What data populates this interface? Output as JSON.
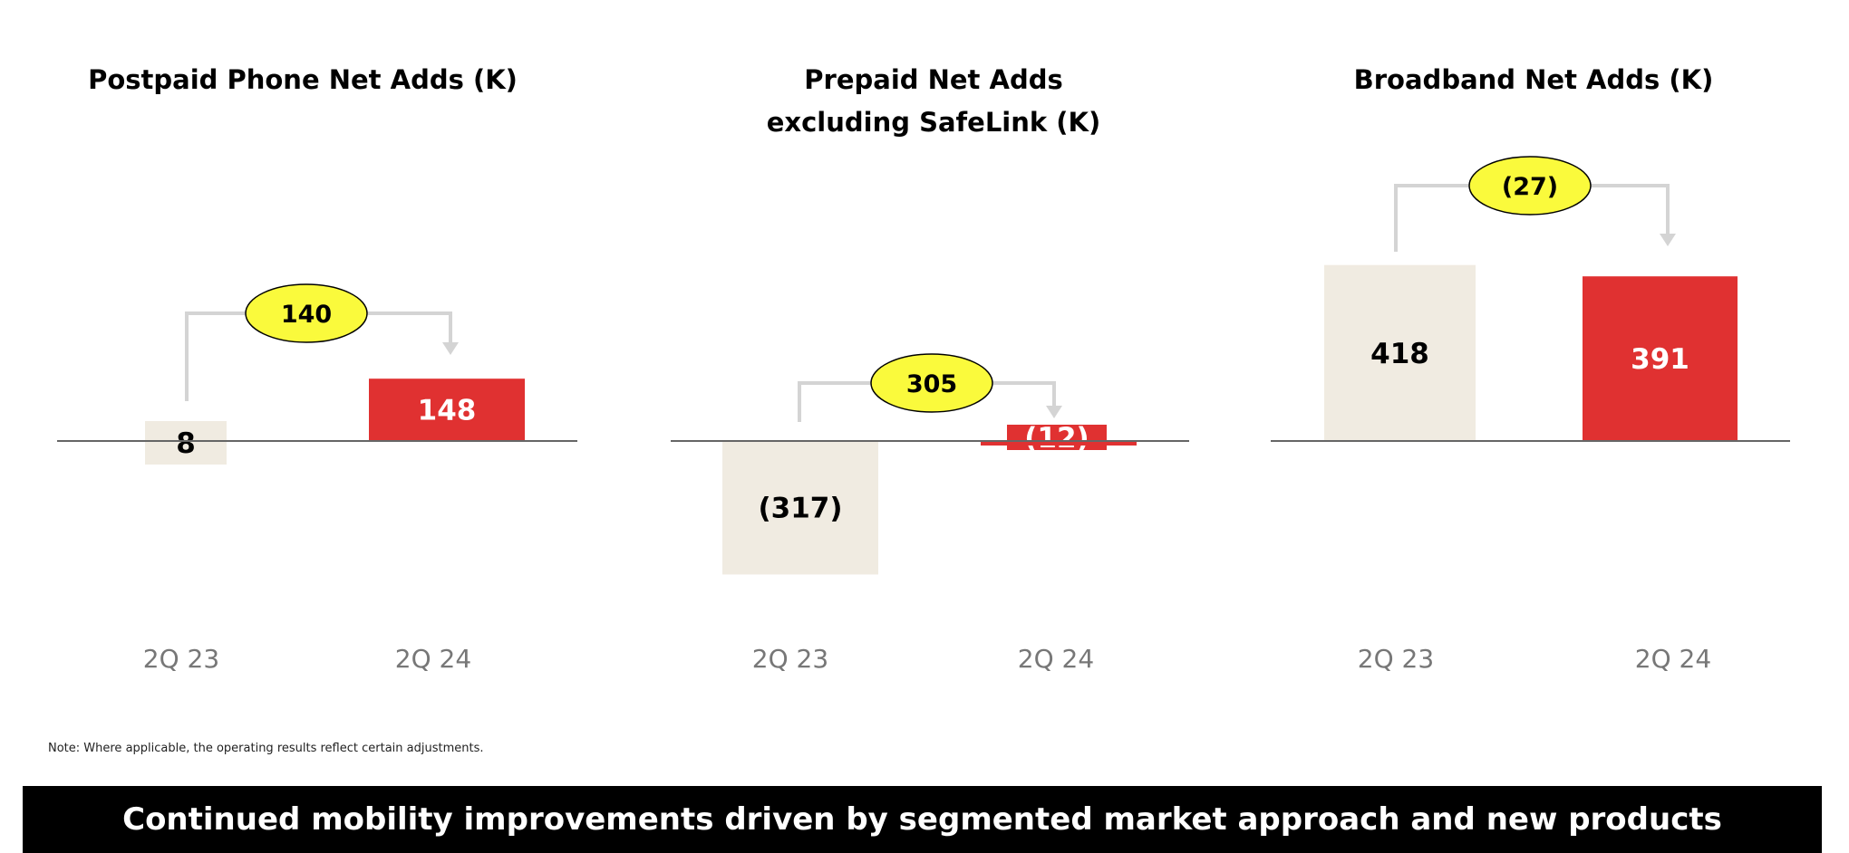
{
  "chart_data": [
    {
      "type": "bar",
      "title": [
        "Postpaid Phone Net Adds (K)"
      ],
      "categories": [
        "2Q 23",
        "2Q 24"
      ],
      "values": [
        8,
        148
      ],
      "value_labels": [
        "8",
        "148"
      ],
      "change_label": "140"
    },
    {
      "type": "bar",
      "title": [
        "Prepaid Net Adds",
        "excluding SafeLink (K)"
      ],
      "categories": [
        "2Q 23",
        "2Q 24"
      ],
      "values": [
        -317,
        -12
      ],
      "value_labels": [
        "(317)",
        "(12)"
      ],
      "change_label": "305"
    },
    {
      "type": "bar",
      "title": [
        "Broadband Net Adds (K)"
      ],
      "categories": [
        "2Q 23",
        "2Q 24"
      ],
      "values": [
        418,
        391
      ],
      "value_labels": [
        "418",
        "391"
      ],
      "change_label": "(27)"
    }
  ],
  "colors": {
    "prior": "#f0ebe1",
    "current": "#e03131",
    "bubble": "#fafa3c",
    "connector": "#d4d4d4",
    "baseline": "#666666",
    "axis_text": "#777777"
  },
  "note": "Note:  Where applicable, the operating results reflect certain adjustments.",
  "banner": "Continued mobility improvements driven by segmented market approach and new products"
}
